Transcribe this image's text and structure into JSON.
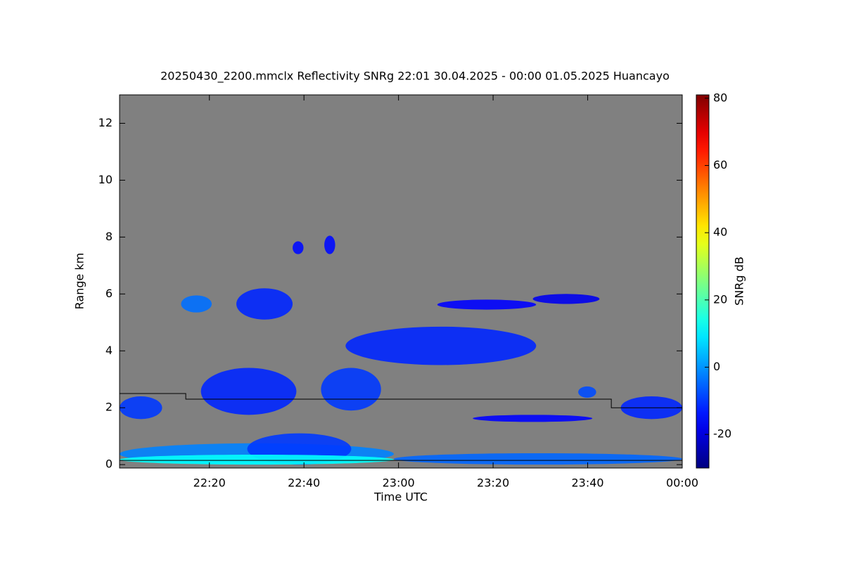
{
  "chart_data": {
    "type": "time-height",
    "title": "20250430_2200.mmclx Reflectivity SNRg   22:01 30.04.2025 - 00:00 01.05.2025 Huancayo",
    "xlabel": "Time UTC",
    "ylabel": "Range km",
    "colorbar_label": "SNRg dB",
    "background": "#808080",
    "xlim": [
      1,
      120
    ],
    "xticks": [
      {
        "value": 20,
        "label": "22:20"
      },
      {
        "value": 40,
        "label": "22:40"
      },
      {
        "value": 60,
        "label": "23:00"
      },
      {
        "value": 80,
        "label": "23:20"
      },
      {
        "value": 100,
        "label": "23:40"
      },
      {
        "value": 120,
        "label": "00:00"
      }
    ],
    "ylim": [
      -0.12,
      13
    ],
    "yticks": [
      0,
      2,
      4,
      6,
      8,
      10,
      12
    ],
    "clim": [
      -30,
      81
    ],
    "cticks": [
      -20,
      0,
      20,
      40,
      60,
      80
    ],
    "echoes": [
      {
        "x": [
          1,
          10
        ],
        "y": [
          1.6,
          2.4
        ],
        "snr": -10
      },
      {
        "x": [
          14,
          20.5
        ],
        "y": [
          5.35,
          5.95
        ],
        "snr": -4
      },
      {
        "x": [
          25.7,
          37.6
        ],
        "y": [
          5.1,
          6.2
        ],
        "snr": -12
      },
      {
        "x": [
          37.6,
          39.9
        ],
        "y": [
          7.4,
          7.85
        ],
        "snr": -15
      },
      {
        "x": [
          44.3,
          46.6
        ],
        "y": [
          7.4,
          8.05
        ],
        "snr": -15
      },
      {
        "x": [
          18.2,
          38.4
        ],
        "y": [
          1.75,
          3.4
        ],
        "snr": -12
      },
      {
        "x": [
          43.6,
          56.3
        ],
        "y": [
          1.9,
          3.4
        ],
        "snr": -10
      },
      {
        "x": [
          48.8,
          89.1
        ],
        "y": [
          3.5,
          4.85
        ],
        "snr": -12
      },
      {
        "x": [
          68.2,
          89.1
        ],
        "y": [
          5.45,
          5.8
        ],
        "snr": -16
      },
      {
        "x": [
          88.4,
          102.5
        ],
        "y": [
          5.65,
          6.0
        ],
        "snr": -18
      },
      {
        "x": [
          75.7,
          101
        ],
        "y": [
          1.5,
          1.75
        ],
        "snr": -16
      },
      {
        "x": [
          98,
          101.8
        ],
        "y": [
          2.35,
          2.75
        ],
        "snr": -8
      },
      {
        "x": [
          107,
          120
        ],
        "y": [
          1.6,
          2.4
        ],
        "snr": -12
      },
      {
        "x": [
          1,
          59
        ],
        "y": [
          0,
          0.75
        ],
        "snr": -2
      },
      {
        "x": [
          28,
          50
        ],
        "y": [
          0,
          1.1
        ],
        "snr": -10
      },
      {
        "x": [
          59,
          120
        ],
        "y": [
          0,
          0.4
        ],
        "snr": -5
      },
      {
        "x": [
          1,
          59
        ],
        "y": [
          0,
          0.35
        ],
        "snr": 12
      }
    ],
    "lines": [
      {
        "color": "#000000",
        "x": [
          1,
          15,
          15,
          105,
          105,
          120
        ],
        "y": [
          2.5,
          2.5,
          2.3,
          2.3,
          2.0,
          2.0
        ]
      },
      {
        "color": "#000000",
        "x": [
          1,
          120
        ],
        "y": [
          0.15,
          0.15
        ]
      }
    ]
  }
}
